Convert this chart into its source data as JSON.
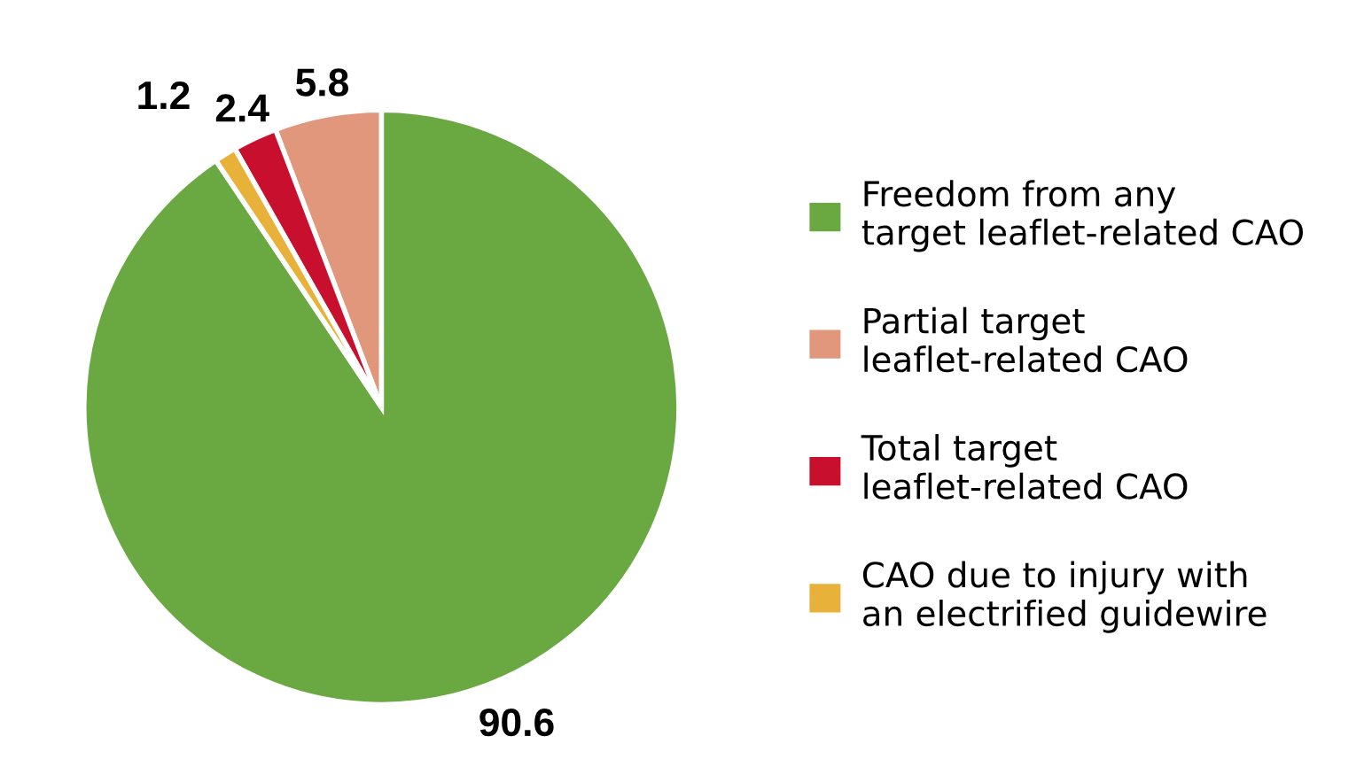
{
  "chart_data": {
    "type": "pie",
    "categories": [
      "Freedom from any\ntarget leaflet-related CAO",
      "Partial target\nleaflet-related CAO",
      "Total target\nleaflet-related CAO",
      "CAO due to injury with\nan electrified guidewire"
    ],
    "values": [
      90.6,
      5.8,
      2.4,
      1.2
    ],
    "colors": [
      "#6aa842",
      "#e0977b",
      "#c8102e",
      "#e8b23a"
    ],
    "data_labels": true,
    "legend": "right"
  }
}
